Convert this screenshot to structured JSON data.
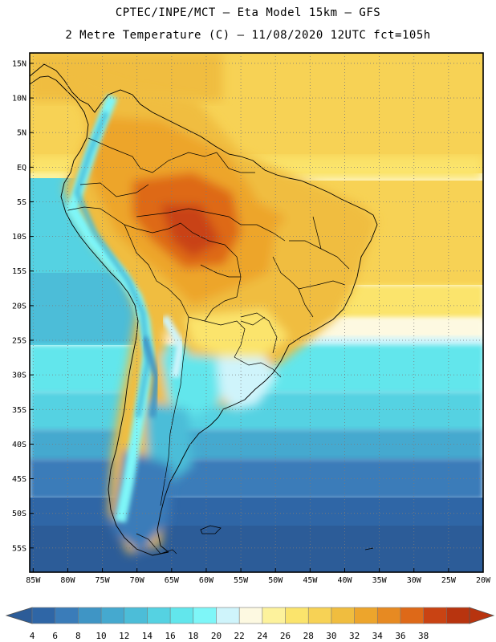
{
  "title": {
    "line1": "CPTEC/INPE/MCT –  Eta Model 15km – GFS",
    "line2": "2 Metre Temperature (C) – 11/08/2020 12UTC fct=105h"
  },
  "map": {
    "lat_labels": [
      "15N",
      "10N",
      "5N",
      "EQ",
      "5S",
      "10S",
      "15S",
      "20S",
      "25S",
      "30S",
      "35S",
      "40S",
      "45S",
      "50S",
      "55S"
    ],
    "lon_labels": [
      "85W",
      "80W",
      "75W",
      "70W",
      "65W",
      "60W",
      "55W",
      "50W",
      "45W",
      "40W",
      "35W",
      "30W",
      "25W",
      "20W"
    ],
    "lat_range": [
      16.5,
      -58.5
    ],
    "lon_range": [
      -85.5,
      -20
    ]
  },
  "colorbar": {
    "labels": [
      "4",
      "6",
      "8",
      "10",
      "12",
      "14",
      "16",
      "18",
      "20",
      "22",
      "24",
      "26",
      "28",
      "30",
      "32",
      "34",
      "36",
      "38"
    ],
    "colors": [
      "#2f66a6",
      "#3a7cb9",
      "#3f95c5",
      "#45a9cf",
      "#4cbdd8",
      "#55d2e2",
      "#62e6ec",
      "#7ef6f8",
      "#cff4fb",
      "#fdf9e1",
      "#fdf29c",
      "#fbe46c",
      "#f7d255",
      "#f0bd3f",
      "#eda52c",
      "#e78a22",
      "#de6918",
      "#c94313",
      "#b8340f"
    ],
    "under_color": "#2c5c98",
    "over_color": "#b8340f"
  }
}
